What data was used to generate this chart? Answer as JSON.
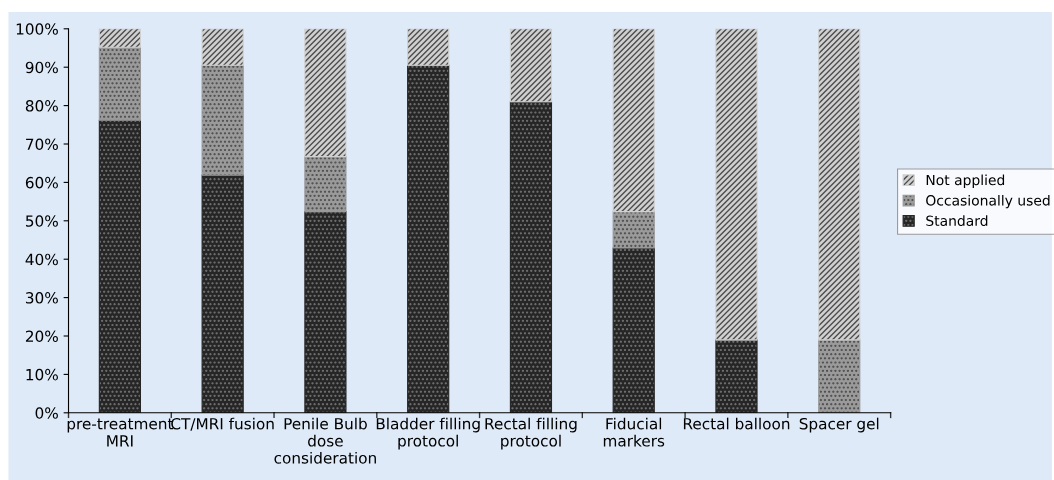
{
  "chart_data": {
    "type": "bar",
    "stacked": true,
    "categories": [
      "pre-treatment\nMRI",
      "CT/MRI fusion",
      "Penile Bulb\ndose\nconsideration",
      "Bladder filling\nprotocol",
      "Rectal filling\nprotocol",
      "Fiducial\nmarkers",
      "Rectal balloon",
      "Spacer gel"
    ],
    "series": [
      {
        "name": "Standard",
        "color": "#262626",
        "values": [
          76.2,
          61.9,
          52.4,
          90.5,
          81.0,
          42.9,
          19.0,
          0
        ]
      },
      {
        "name": "Occasionally used",
        "color": "#9a9a9a",
        "values": [
          19.0,
          28.6,
          14.3,
          0,
          0,
          9.5,
          0,
          19.0
        ]
      },
      {
        "name": "Not applied",
        "color": "#d0d0d0",
        "values": [
          4.8,
          9.5,
          33.3,
          9.5,
          19.0,
          47.6,
          81.0,
          81.0
        ]
      }
    ],
    "ylim": [
      0,
      100
    ],
    "yticks": [
      {
        "value": 0,
        "label": "0%"
      },
      {
        "value": 10,
        "label": "10%"
      },
      {
        "value": 20,
        "label": "20%"
      },
      {
        "value": 30,
        "label": "30%"
      },
      {
        "value": 40,
        "label": "40%"
      },
      {
        "value": 50,
        "label": "50%"
      },
      {
        "value": 60,
        "label": "60%"
      },
      {
        "value": 70,
        "label": "70%"
      },
      {
        "value": 80,
        "label": "80%"
      },
      {
        "value": 90,
        "label": "90%"
      },
      {
        "value": 100,
        "label": "100%"
      }
    ],
    "grid": false,
    "legend": "right"
  }
}
